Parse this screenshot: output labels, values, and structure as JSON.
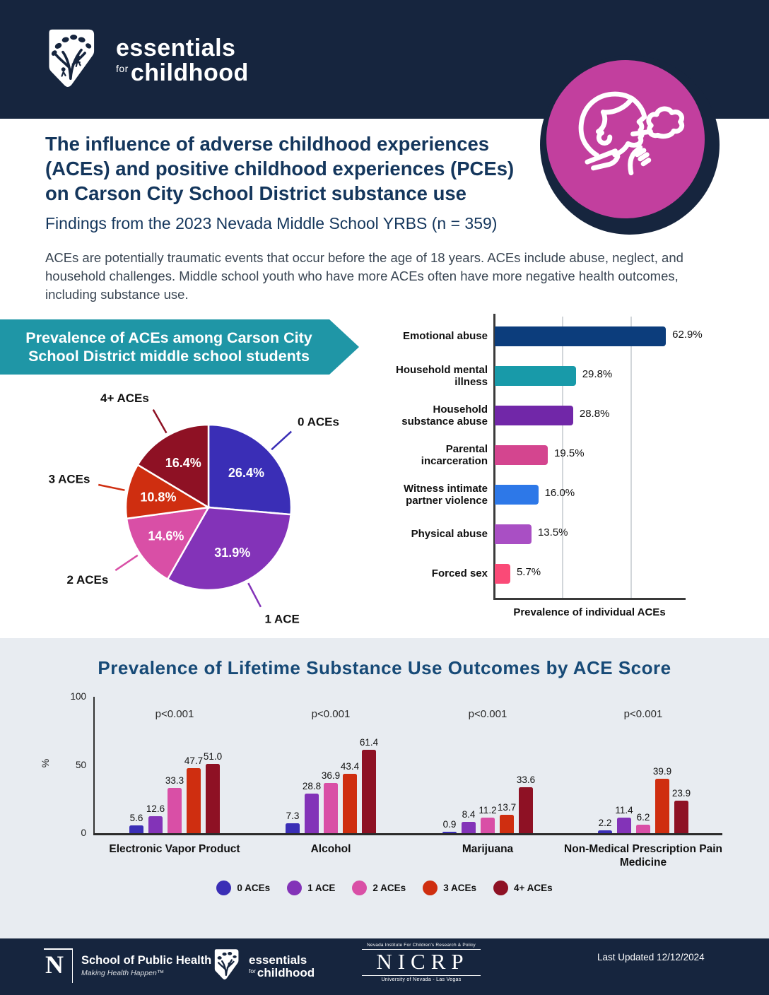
{
  "header": {
    "bg_color": "#16253e",
    "brand": {
      "line1": "essentials",
      "for_word": "for",
      "line2": "childhood"
    }
  },
  "hero": {
    "icon": "child-vaping-icon",
    "circle_color": "#c23f9e",
    "ring_color": "#16253e"
  },
  "intro": {
    "title": "The influence of adverse childhood experiences (ACEs) and positive childhood experiences (PCEs) on Carson City School District substance use",
    "subtitle": "Findings from the 2023 Nevada Middle School YRBS (n = 359)",
    "body": "ACEs are potentially traumatic events that occur before the age of 18 years. ACEs include abuse, neglect, and household challenges. Middle school youth who have more ACEs often have more negative health outcomes, including substance use.",
    "title_color": "#14365c"
  },
  "chart_data": [
    {
      "type": "pie",
      "title": "Prevalence of ACEs among Carson City School District middle school students",
      "banner_color": "#1f96a6",
      "labels": [
        "0 ACEs",
        "1 ACE",
        "2 ACEs",
        "3 ACEs",
        "4+ ACEs"
      ],
      "values": [
        26.4,
        31.9,
        14.6,
        10.8,
        16.4
      ],
      "value_labels": [
        "26.4%",
        "31.9%",
        "14.6%",
        "10.8%",
        "16.4%"
      ],
      "colors": [
        "#3a2eb6",
        "#8333b8",
        "#d94fa6",
        "#cf2e10",
        "#8e1124"
      ],
      "start_angle_deg": 0,
      "direction": "clockwise"
    },
    {
      "type": "bar",
      "orientation": "horizontal",
      "categories": [
        "Emotional abuse",
        "Household mental illness",
        "Household substance abuse",
        "Parental incarceration",
        "Witness intimate partner violence",
        "Physical abuse",
        "Forced sex"
      ],
      "values": [
        62.9,
        29.8,
        28.8,
        19.5,
        16.0,
        13.5,
        5.7
      ],
      "value_labels": [
        "62.9%",
        "29.8%",
        "28.8%",
        "19.5%",
        "16.0%",
        "13.5%",
        "5.7%"
      ],
      "bar_colors": [
        "#0c3d7c",
        "#189aa9",
        "#7127a8",
        "#d4458f",
        "#2d78e8",
        "#a94fc4",
        "#fa4a77"
      ],
      "xlabel": "Prevalence of individual ACEs",
      "xlim": [
        0,
        70
      ],
      "gridlines_pct": [
        25,
        50
      ]
    },
    {
      "type": "bar",
      "title": "Prevalence of Lifetime Substance Use Outcomes by ACE Score",
      "categories": [
        "Electronic Vapor Product",
        "Alcohol",
        "Marijuana",
        "Non-Medical Prescription Pain Medicine"
      ],
      "series": [
        {
          "name": "0 ACEs",
          "color": "#3a2eb6",
          "values": [
            5.6,
            7.3,
            0.9,
            2.2
          ]
        },
        {
          "name": "1 ACE",
          "color": "#8333b8",
          "values": [
            12.6,
            28.8,
            8.4,
            11.4
          ]
        },
        {
          "name": "2 ACEs",
          "color": "#d94fa6",
          "values": [
            33.3,
            36.9,
            11.2,
            6.2
          ]
        },
        {
          "name": "3 ACEs",
          "color": "#cf2e10",
          "values": [
            47.7,
            43.4,
            13.7,
            39.9
          ]
        },
        {
          "name": "4+ ACEs",
          "color": "#8e1124",
          "values": [
            51.0,
            61.4,
            33.6,
            23.9
          ]
        }
      ],
      "group_annotations": [
        "p<0.001",
        "p<0.001",
        "p<0.001",
        "p<0.001"
      ],
      "ylabel": "%",
      "ylim": [
        0,
        100
      ],
      "yticks": [
        0,
        50,
        100
      ],
      "grid": false,
      "legend_position": "bottom",
      "background": "#e8ecf1"
    }
  ],
  "footer": {
    "bg_color": "#16253e",
    "unr": {
      "n_letter": "N",
      "school": "School of Public Health",
      "tagline": "Making Health Happen™"
    },
    "efc": {
      "line1": "essentials",
      "for_word": "for",
      "line2": "childhood"
    },
    "nicrp": {
      "top": "Nevada Institute For Children's Research & Policy",
      "acronym": "NICRP",
      "bottom": "University of Nevada - Las Vegas"
    },
    "last_updated": "Last Updated 12/12/2024"
  }
}
